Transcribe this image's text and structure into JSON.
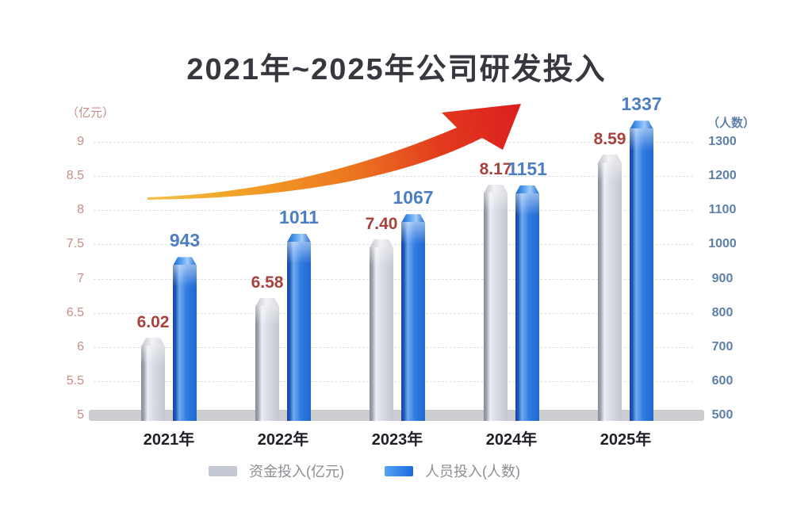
{
  "title": "2021年~2025年公司研发投入",
  "chart_data": {
    "type": "bar",
    "title": "2021年~2025年公司研发投入",
    "categories": [
      "2021年",
      "2022年",
      "2023年",
      "2024年",
      "2025年"
    ],
    "series": [
      {
        "name": "资金投入(亿元)",
        "axis": "left",
        "values": [
          6.02,
          6.58,
          7.4,
          8.17,
          8.59
        ],
        "labels": [
          "6.02",
          "6.58",
          "7.40",
          "8.17",
          "8.59"
        ],
        "bar_style": "gray",
        "label_color": "#a8423c"
      },
      {
        "name": "人员投入(人数)",
        "axis": "right",
        "values": [
          943,
          1011,
          1067,
          1151,
          1337
        ],
        "labels": [
          "943",
          "1011",
          "1067",
          "1151",
          "1337"
        ],
        "bar_style": "blue",
        "label_color": "#4d7dc2"
      }
    ],
    "left_axis": {
      "unit": "（亿元）",
      "ticks": [
        "9",
        "8.5",
        "8",
        "7.5",
        "7",
        "6.5",
        "6",
        "5.5",
        "5"
      ],
      "range": [
        5,
        9
      ],
      "color": "#c58e86"
    },
    "right_axis": {
      "unit": "（人数）",
      "ticks": [
        "1300",
        "1200",
        "1100",
        "1000",
        "900",
        "800",
        "700",
        "600",
        "500"
      ],
      "range": [
        500,
        1300
      ],
      "color": "#5d80a8"
    },
    "grid": {
      "style": "dashed",
      "color": "#dfe0e6",
      "horizontal": true
    },
    "legend_position": "bottom",
    "annotations": [
      {
        "type": "arrow",
        "meaning": "upward growth trend",
        "colors": [
          "#f3c04b",
          "#f2a426",
          "#e85c1e",
          "#dc1f1f"
        ]
      }
    ]
  },
  "legend": {
    "items": [
      {
        "label": "资金投入(亿元)",
        "swatch": [
          "#c4c8d2",
          "#c4c8d2"
        ]
      },
      {
        "label": "人员投入(人数)",
        "swatch": [
          "#54a4f4",
          "#1a6ade"
        ]
      }
    ]
  },
  "colors": {
    "background": "#ffffff",
    "title": "#37373f",
    "category_label": "#1f1f27",
    "baseline_band": "#cbcbd0",
    "gray_value": "#a8423c",
    "blue_value": "#4d7dc2"
  }
}
